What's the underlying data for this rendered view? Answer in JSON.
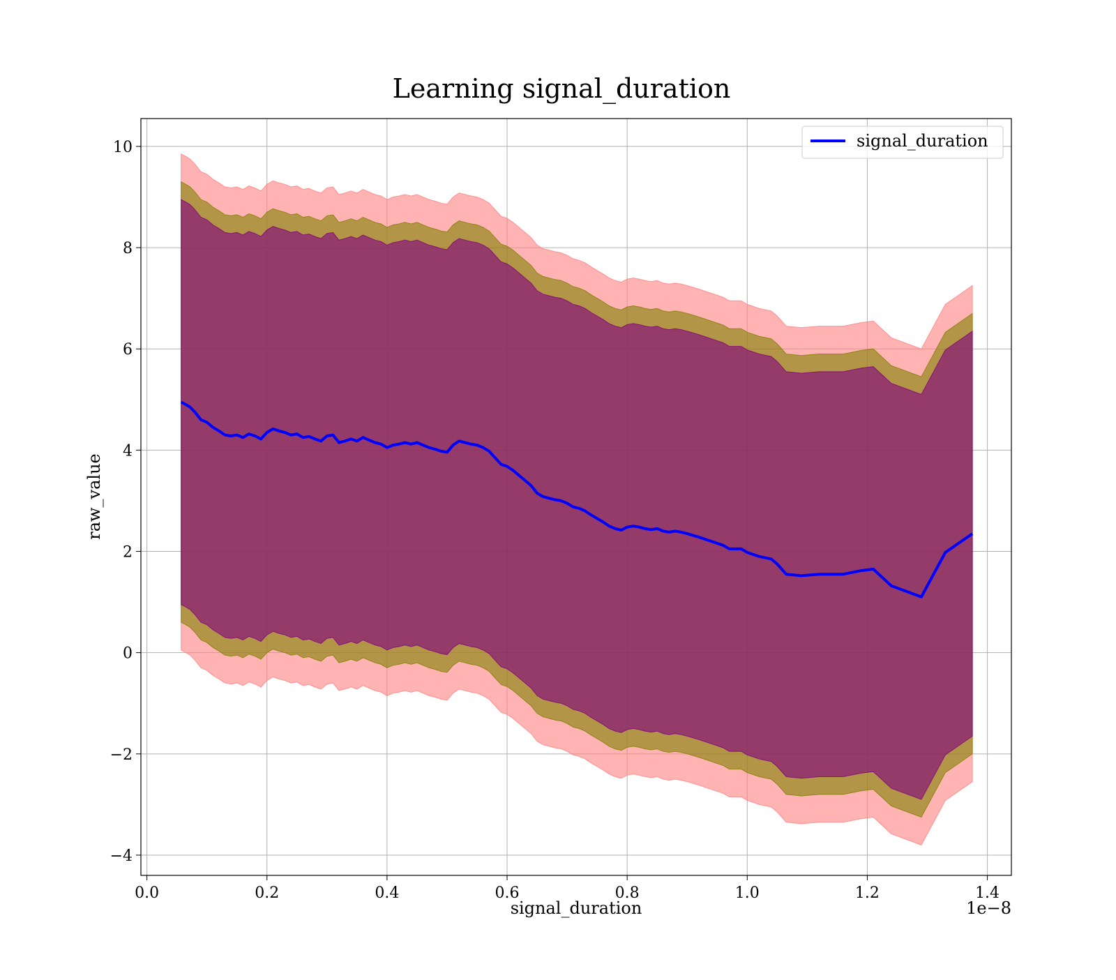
{
  "chart_data": {
    "type": "line",
    "title": "Learning signal_duration",
    "xlabel": "signal_duration",
    "ylabel": "raw_value",
    "x_offset_label": "1e−8",
    "xlim": [
      -0.01,
      1.44
    ],
    "ylim": [
      -4.4,
      10.55
    ],
    "x_ticks": [
      0.0,
      0.2,
      0.4,
      0.6,
      0.8,
      1.0,
      1.2,
      1.4
    ],
    "x_tick_labels": [
      "0.0",
      "0.2",
      "0.4",
      "0.6",
      "0.8",
      "1.0",
      "1.2",
      "1.4"
    ],
    "y_ticks": [
      -4,
      -2,
      0,
      2,
      4,
      6,
      8,
      10
    ],
    "y_tick_labels": [
      "−4",
      "−2",
      "0",
      "2",
      "4",
      "6",
      "8",
      "10"
    ],
    "grid": true,
    "legend_position": "top-right",
    "series": [
      {
        "name": "signal_duration",
        "color": "#0000ff",
        "x": [
          0.057,
          0.065,
          0.072,
          0.08,
          0.09,
          0.1,
          0.11,
          0.12,
          0.13,
          0.14,
          0.15,
          0.16,
          0.17,
          0.18,
          0.19,
          0.2,
          0.21,
          0.22,
          0.23,
          0.24,
          0.25,
          0.26,
          0.27,
          0.28,
          0.29,
          0.3,
          0.31,
          0.32,
          0.33,
          0.34,
          0.35,
          0.36,
          0.37,
          0.38,
          0.39,
          0.4,
          0.41,
          0.42,
          0.43,
          0.44,
          0.45,
          0.46,
          0.47,
          0.48,
          0.49,
          0.5,
          0.51,
          0.52,
          0.53,
          0.54,
          0.55,
          0.56,
          0.57,
          0.58,
          0.59,
          0.6,
          0.61,
          0.62,
          0.63,
          0.64,
          0.65,
          0.66,
          0.67,
          0.68,
          0.69,
          0.7,
          0.71,
          0.72,
          0.73,
          0.74,
          0.75,
          0.76,
          0.77,
          0.78,
          0.79,
          0.8,
          0.81,
          0.82,
          0.83,
          0.84,
          0.85,
          0.86,
          0.87,
          0.88,
          0.89,
          0.9,
          0.92,
          0.94,
          0.96,
          0.97,
          0.99,
          1.0,
          1.02,
          1.04,
          1.05,
          1.065,
          1.09,
          1.12,
          1.16,
          1.19,
          1.21,
          1.24,
          1.29,
          1.33,
          1.375
        ],
        "y": [
          4.95,
          4.9,
          4.85,
          4.75,
          4.6,
          4.55,
          4.45,
          4.38,
          4.3,
          4.28,
          4.3,
          4.25,
          4.32,
          4.28,
          4.22,
          4.35,
          4.42,
          4.38,
          4.35,
          4.3,
          4.32,
          4.25,
          4.27,
          4.22,
          4.18,
          4.28,
          4.3,
          4.15,
          4.18,
          4.22,
          4.18,
          4.25,
          4.2,
          4.15,
          4.12,
          4.05,
          4.1,
          4.12,
          4.15,
          4.12,
          4.15,
          4.1,
          4.05,
          4.02,
          3.98,
          3.96,
          4.1,
          4.18,
          4.15,
          4.12,
          4.1,
          4.05,
          3.98,
          3.85,
          3.72,
          3.68,
          3.6,
          3.5,
          3.4,
          3.3,
          3.15,
          3.08,
          3.05,
          3.02,
          3.0,
          2.95,
          2.88,
          2.85,
          2.8,
          2.72,
          2.65,
          2.58,
          2.5,
          2.45,
          2.42,
          2.48,
          2.5,
          2.48,
          2.45,
          2.43,
          2.45,
          2.4,
          2.38,
          2.4,
          2.38,
          2.35,
          2.28,
          2.2,
          2.12,
          2.05,
          2.05,
          1.98,
          1.9,
          1.85,
          1.75,
          1.55,
          1.52,
          1.55,
          1.55,
          1.62,
          1.65,
          1.32,
          1.1,
          1.98,
          2.35
        ]
      }
    ],
    "bands": [
      {
        "color": "#ff8080",
        "inner_offset": 4.4,
        "outer_offset": 4.9
      },
      {
        "color": "#808000",
        "inner_offset": 4.1,
        "outer_offset": 4.35
      },
      {
        "color": "#800080",
        "inner_offset": 0.0,
        "outer_offset": 4.0
      }
    ]
  }
}
